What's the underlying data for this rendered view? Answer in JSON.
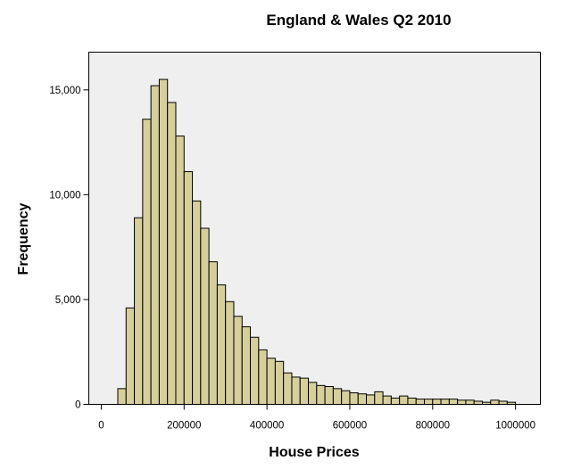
{
  "chart_data": {
    "type": "bar",
    "title": "England & Wales Q2 2010",
    "xlabel": "House Prices",
    "ylabel": "Frequency",
    "xlim": [
      -30000,
      1060000
    ],
    "ylim": [
      0,
      16800
    ],
    "bin_width": 20000,
    "x_ticks": [
      0,
      200000,
      400000,
      600000,
      800000,
      1000000
    ],
    "x_tick_labels": [
      "0",
      "200000",
      "400000",
      "600000",
      "800000",
      "1000000"
    ],
    "y_ticks": [
      0,
      5000,
      10000,
      15000
    ],
    "y_tick_labels": [
      "0",
      "5,000",
      "10,000",
      "15,000"
    ],
    "grid": false,
    "bins_start": [
      40000,
      60000,
      80000,
      100000,
      120000,
      140000,
      160000,
      180000,
      200000,
      220000,
      240000,
      260000,
      280000,
      300000,
      320000,
      340000,
      360000,
      380000,
      400000,
      420000,
      440000,
      460000,
      480000,
      500000,
      520000,
      540000,
      560000,
      580000,
      600000,
      620000,
      640000,
      660000,
      680000,
      700000,
      720000,
      740000,
      760000,
      780000,
      800000,
      820000,
      840000,
      860000,
      880000,
      900000,
      920000,
      940000,
      960000,
      980000
    ],
    "values": [
      750,
      4600,
      8900,
      13600,
      15200,
      15500,
      14400,
      12800,
      11100,
      9700,
      8400,
      6800,
      5700,
      4900,
      4200,
      3700,
      3200,
      2600,
      2200,
      2050,
      1500,
      1300,
      1250,
      1050,
      900,
      850,
      750,
      650,
      550,
      500,
      450,
      600,
      400,
      300,
      400,
      300,
      250,
      250,
      250,
      250,
      250,
      200,
      200,
      150,
      100,
      200,
      150,
      100
    ]
  }
}
